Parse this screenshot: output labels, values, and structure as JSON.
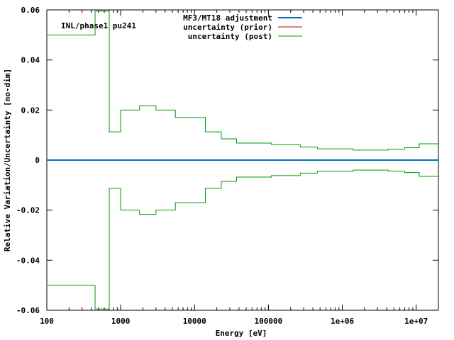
{
  "chart_data": {
    "type": "line",
    "title": "",
    "annotation": "INL/phase1 pu241",
    "xlabel": "Energy [eV]",
    "ylabel": "Relative Variation/Uncertainty [no-dim]",
    "xscale": "log",
    "xlim": [
      100,
      20000000
    ],
    "ylim": [
      -0.06,
      0.06
    ],
    "x_tick_labels": [
      "100",
      "1000",
      "10000",
      "100000",
      "1e+06",
      "1e+07"
    ],
    "x_tick_values": [
      100,
      1000,
      10000,
      100000,
      1000000,
      10000000
    ],
    "y_tick_labels": [
      "0.06",
      "0.04",
      "0.02",
      "0",
      "-0.02",
      "-0.04",
      "-0.06"
    ],
    "y_tick_values": [
      0.06,
      0.04,
      0.02,
      0,
      -0.02,
      -0.04,
      -0.06
    ],
    "legend_position": "top-center",
    "bin_edges": [
      100,
      450,
      700,
      1000,
      1800,
      3000,
      5500,
      14000,
      23000,
      37000,
      67000,
      110000,
      170000,
      270000,
      460000,
      1400000,
      2300000,
      4200000,
      7000000,
      11000000,
      20000000
    ],
    "series": [
      {
        "name": "MF3/MT18 adjustment",
        "color": "#0072bd",
        "style": "line",
        "values": [
          0,
          0,
          0,
          0,
          0,
          0,
          0,
          0,
          0,
          0,
          0,
          0,
          0,
          0,
          0,
          0,
          0,
          0,
          0,
          0
        ]
      },
      {
        "name": "uncertainty (prior)",
        "color": "#cc0000",
        "style": "step",
        "values": []
      },
      {
        "name": "uncertainty (post)",
        "color": "#009900",
        "style": "step-symmetric",
        "values": [
          0.05,
          0.0595,
          0.0113,
          0.02,
          0.0217,
          0.02,
          0.017,
          0.0113,
          0.0085,
          0.0068,
          0.0068,
          0.0062,
          0.0062,
          0.0052,
          0.0045,
          0.004,
          0.004,
          0.0044,
          0.005,
          0.0065
        ]
      }
    ]
  }
}
